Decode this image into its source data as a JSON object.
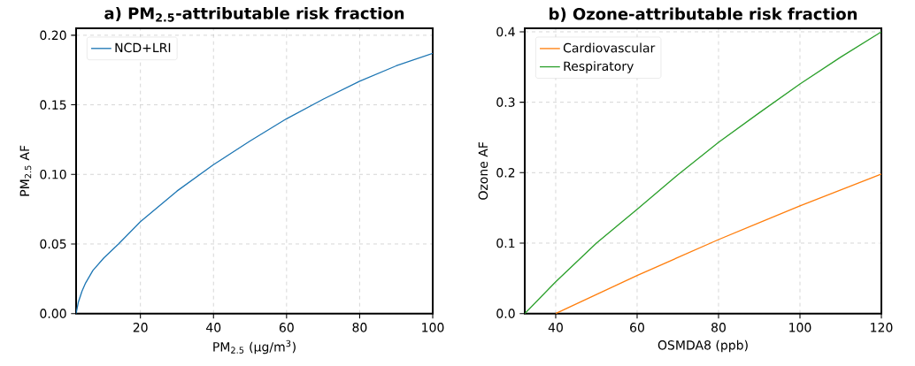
{
  "chart_data": [
    {
      "type": "line",
      "title": "a) PM$_{2.5}$-attributable risk fraction",
      "xlabel": "PM$_{2.5}$ (μg/m$^{3}$)",
      "ylabel": "PM$_{2.5}$ AF",
      "xlim": [
        2.4,
        100
      ],
      "ylim": [
        0,
        0.205
      ],
      "xticks": [
        20,
        40,
        60,
        80,
        100
      ],
      "yticks": [
        {
          "value": 0,
          "label": "0.00"
        },
        {
          "value": 0.05,
          "label": "0.05"
        },
        {
          "value": 0.1,
          "label": "0.10"
        },
        {
          "value": 0.15,
          "label": "0.15"
        },
        {
          "value": 0.2,
          "label": "0.20"
        }
      ],
      "grid": true,
      "legend": "top left",
      "line_style": "solid",
      "series": [
        {
          "name": "NCD+LRI",
          "color": "#1f77b4",
          "x": [
            2.4,
            3,
            4,
            5,
            7,
            10,
            14,
            20,
            30,
            40,
            50,
            60,
            70,
            80,
            90,
            100
          ],
          "values": [
            0,
            0.008,
            0.016,
            0.022,
            0.031,
            0.04,
            0.05,
            0.066,
            0.088,
            0.107,
            0.124,
            0.14,
            0.154,
            0.167,
            0.178,
            0.187
          ]
        }
      ]
    },
    {
      "type": "line",
      "title": "b) Ozone-attributable risk fraction",
      "xlabel": "OSMDA8 (ppb)",
      "ylabel": "Ozone AF",
      "xlim": [
        32.4,
        120
      ],
      "ylim": [
        0,
        0.405
      ],
      "xticks": [
        40,
        60,
        80,
        100,
        120
      ],
      "yticks": [
        {
          "value": 0,
          "label": "0.0"
        },
        {
          "value": 0.1,
          "label": "0.1"
        },
        {
          "value": 0.2,
          "label": "0.2"
        },
        {
          "value": 0.3,
          "label": "0.3"
        },
        {
          "value": 0.4,
          "label": "0.4"
        }
      ],
      "grid": true,
      "legend": "top left",
      "line_style": "solid",
      "series": [
        {
          "name": "Cardiovascular",
          "color": "#ff7f0e",
          "x": [
            40,
            60,
            80,
            100,
            120
          ],
          "values": [
            0,
            0.054,
            0.105,
            0.153,
            0.198
          ]
        },
        {
          "name": "Respiratory",
          "color": "#2ca02c",
          "x": [
            32.4,
            40,
            50,
            60,
            70,
            80,
            90,
            100,
            110,
            120
          ],
          "values": [
            0,
            0.045,
            0.1,
            0.148,
            0.197,
            0.243,
            0.285,
            0.326,
            0.364,
            0.4
          ]
        }
      ]
    }
  ]
}
